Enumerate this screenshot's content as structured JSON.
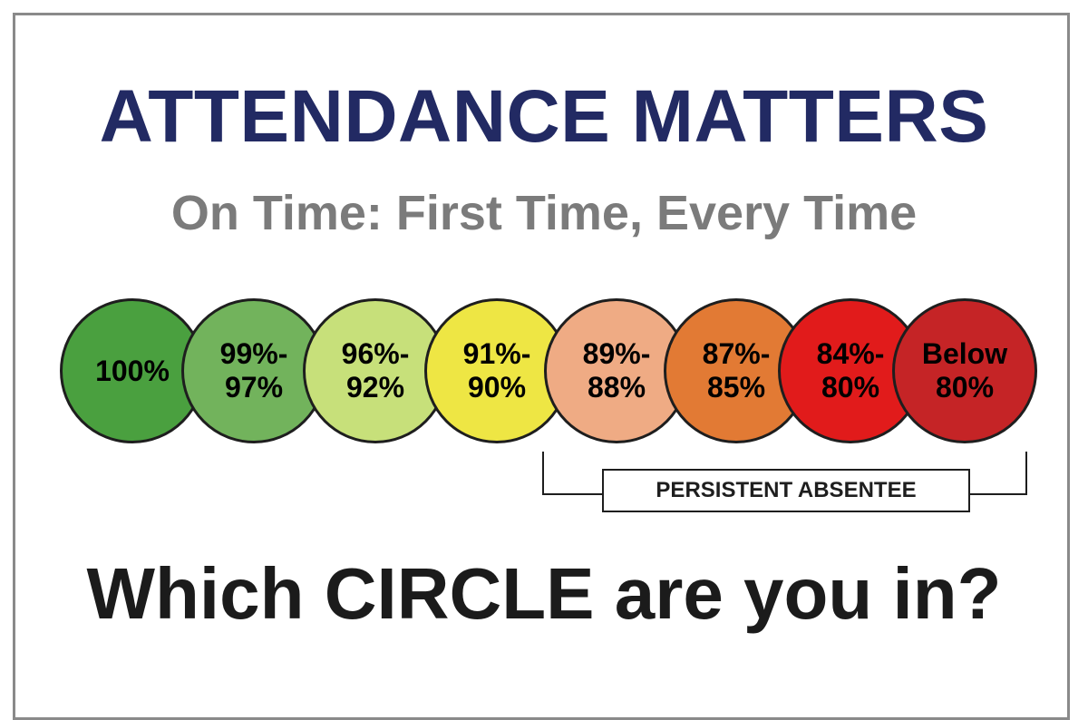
{
  "header": {
    "title": "ATTENDANCE MATTERS",
    "subtitle": "On Time: First Time, Every Time"
  },
  "circles": [
    {
      "label": "100%",
      "color": "#4aa03f"
    },
    {
      "label": "99%-\n97%",
      "color": "#72b35c"
    },
    {
      "label": "96%-\n92%",
      "color": "#c7e07a"
    },
    {
      "label": "91%-\n90%",
      "color": "#eee644"
    },
    {
      "label": "89%-\n88%",
      "color": "#efab84"
    },
    {
      "label": "87%-\n85%",
      "color": "#e27a34"
    },
    {
      "label": "84%-\n80%",
      "color": "#e11b1b"
    },
    {
      "label": "Below\n80%",
      "color": "#c52426"
    }
  ],
  "persistent_absentee": {
    "label": "PERSISTENT ABSENTEE"
  },
  "footer": {
    "question": "Which CIRCLE are you in?"
  },
  "colors": {
    "title": "#222a63",
    "subtitle": "#7b7b7b",
    "text": "#1b1b1b"
  }
}
